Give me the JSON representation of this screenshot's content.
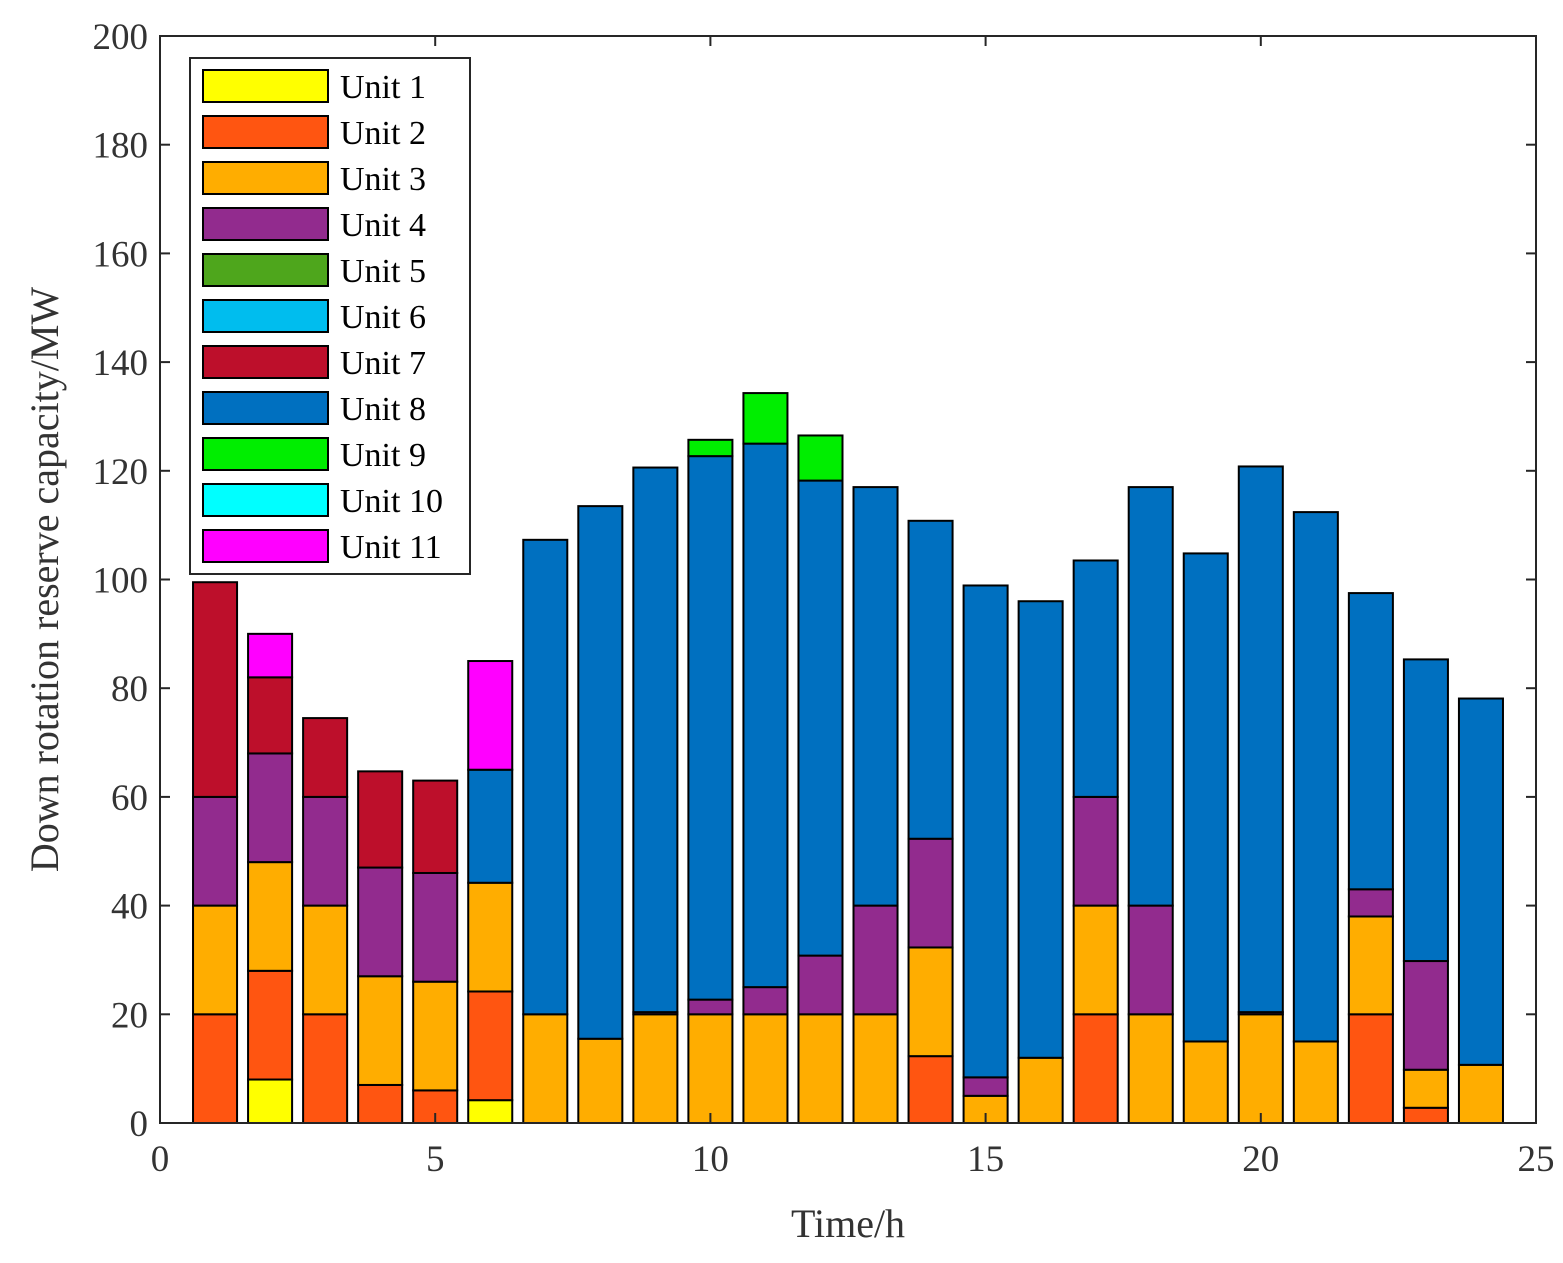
{
  "chart_data": {
    "type": "bar",
    "stacked": true,
    "title": "",
    "xlabel": "Time/h",
    "ylabel": "Down rotation reserve capacity/MW",
    "xlim": [
      0,
      25
    ],
    "ylim": [
      0,
      200
    ],
    "xticks": [
      0,
      5,
      10,
      15,
      20,
      25
    ],
    "yticks": [
      0,
      20,
      40,
      60,
      80,
      100,
      120,
      140,
      160,
      180,
      200
    ],
    "grid": false,
    "legend_position": "top-left",
    "x": [
      1,
      2,
      3,
      4,
      5,
      6,
      7,
      8,
      9,
      10,
      11,
      12,
      13,
      14,
      15,
      16,
      17,
      18,
      19,
      20,
      21,
      22,
      23,
      24
    ],
    "series": [
      {
        "name": "Unit 1",
        "color": "#FFFF00",
        "values": [
          0,
          8,
          0,
          0,
          0,
          4.2,
          0,
          0,
          0,
          0,
          0,
          0,
          0,
          0,
          0,
          0,
          0,
          0,
          0,
          0,
          0,
          0,
          0,
          0
        ]
      },
      {
        "name": "Unit 2",
        "color": "#FF5511",
        "values": [
          20,
          20,
          20,
          7,
          6,
          20,
          0,
          0,
          0,
          0,
          0,
          0,
          0,
          12.3,
          0,
          0,
          20,
          0,
          0,
          0,
          0,
          20,
          2.8,
          0
        ]
      },
      {
        "name": "Unit 3",
        "color": "#FFAD00",
        "values": [
          20,
          20,
          20,
          20,
          20,
          20,
          20,
          15.5,
          20,
          20,
          20,
          20,
          20,
          20,
          5,
          12,
          20,
          20,
          15,
          20,
          15,
          18,
          7,
          10.7
        ]
      },
      {
        "name": "Unit 4",
        "color": "#922B8E",
        "values": [
          20,
          20,
          20,
          20,
          20,
          0,
          0,
          0,
          0.4,
          2.7,
          5,
          10.8,
          20,
          20,
          3.4,
          0,
          20,
          20,
          0,
          0.4,
          0,
          5,
          20,
          0
        ]
      },
      {
        "name": "Unit 5",
        "color": "#4EA61C",
        "values": [
          0,
          0,
          0,
          0,
          0,
          0,
          0,
          0,
          0,
          0,
          0,
          0,
          0,
          0,
          0,
          0,
          0,
          0,
          0,
          0,
          0,
          0,
          0,
          0
        ]
      },
      {
        "name": "Unit 6",
        "color": "#00BDEE",
        "values": [
          0,
          0,
          0,
          0,
          0,
          0,
          0,
          0,
          0,
          0,
          0,
          0,
          0,
          0,
          0,
          0,
          0,
          0,
          0,
          0,
          0,
          0,
          0,
          0
        ]
      },
      {
        "name": "Unit 7",
        "color": "#BD0F2B",
        "values": [
          39.5,
          14,
          14.5,
          17.7,
          17,
          0,
          0,
          0,
          0,
          0,
          0,
          0,
          0,
          0,
          0,
          0,
          0,
          0,
          0,
          0,
          0,
          0,
          0,
          0
        ]
      },
      {
        "name": "Unit 8",
        "color": "#0070C0",
        "values": [
          0,
          0,
          0,
          0,
          0,
          20.8,
          87.3,
          98,
          100.2,
          100,
          100,
          87.4,
          77,
          58.5,
          90.5,
          84,
          43.5,
          77,
          89.8,
          100.4,
          97.4,
          54.5,
          55.5,
          67.4
        ]
      },
      {
        "name": "Unit 9",
        "color": "#00EE00",
        "values": [
          0,
          0,
          0,
          0,
          0,
          0,
          0,
          0,
          0,
          3,
          9.3,
          8.3,
          0,
          0,
          0,
          0,
          0,
          0,
          0,
          0,
          0,
          0,
          0,
          0
        ]
      },
      {
        "name": "Unit 10",
        "color": "#00FFFF",
        "values": [
          0,
          0,
          0,
          0,
          0,
          0,
          0,
          0,
          0,
          0,
          0,
          0,
          0,
          0,
          0,
          0,
          0,
          0,
          0,
          0,
          0,
          0,
          0,
          0
        ]
      },
      {
        "name": "Unit 11",
        "color": "#FF00FF",
        "values": [
          0,
          8,
          0,
          0,
          0,
          20,
          0,
          0,
          0,
          0,
          0,
          0,
          0,
          0,
          0,
          0,
          0,
          0,
          0,
          0,
          0,
          0,
          0,
          0
        ]
      }
    ]
  }
}
